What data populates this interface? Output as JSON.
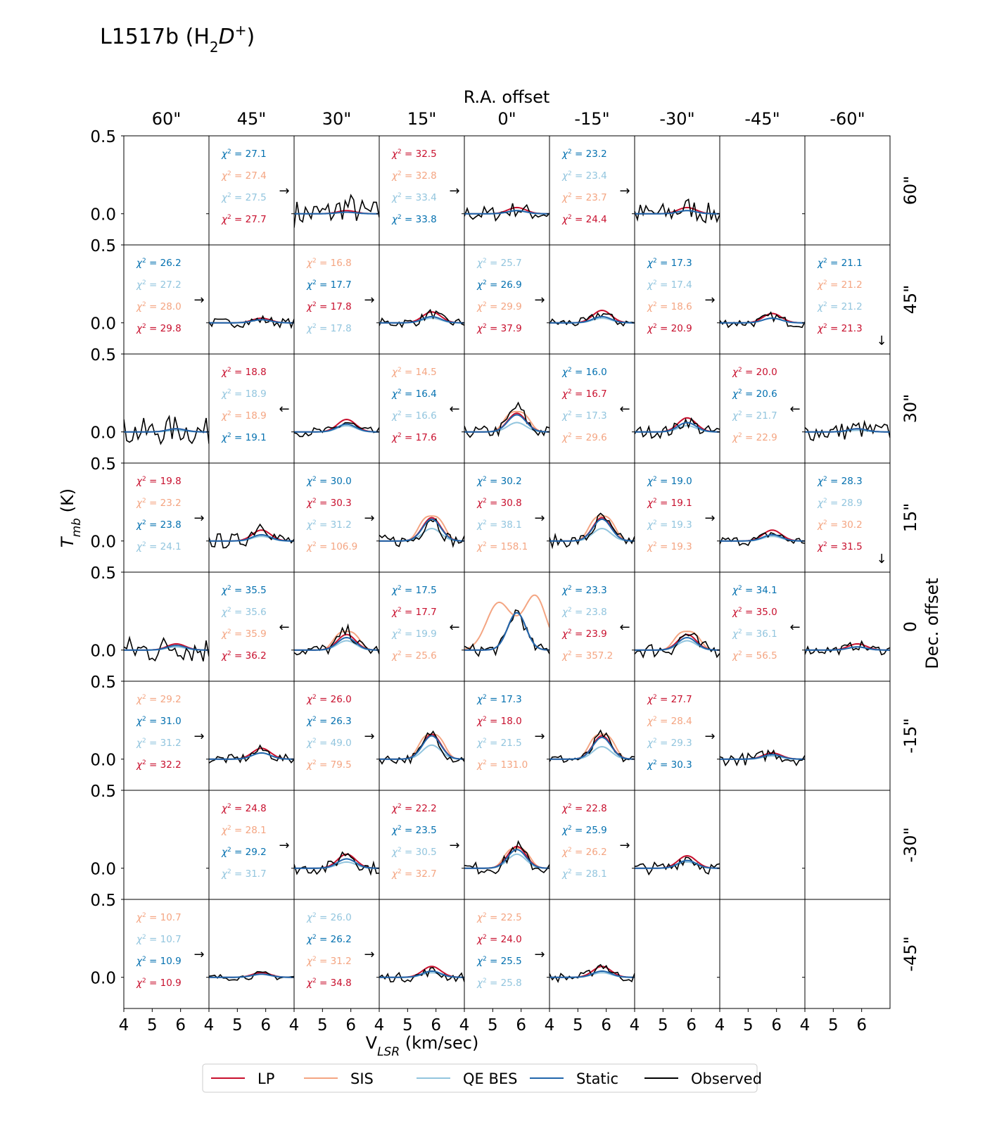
{
  "chart_data": {
    "type": "line",
    "title": "L1517b (H₂D⁺)",
    "xlabel": "V_LSR (km/sec)",
    "ylabel": "T_mb (K)",
    "top_label": "R.A. offset",
    "right_label": "Dec. offset",
    "ra_offsets": [
      "60\"",
      "45\"",
      "30\"",
      "15\"",
      "0\"",
      "-15\"",
      "-30\"",
      "-45\"",
      "-60\""
    ],
    "dec_offsets": [
      "60\"",
      "45\"",
      "30\"",
      "15\"",
      "0",
      "-15\"",
      "-30\"",
      "-45\""
    ],
    "xlim": [
      4,
      7
    ],
    "ylim": [
      -0.2,
      0.5
    ],
    "x_ticks": [
      4,
      5,
      6
    ],
    "y_ticks": [
      "0.0",
      "0.5"
    ],
    "grid": false,
    "legend_position": "bottom",
    "series": [
      {
        "key": "LP",
        "name": "LP",
        "color": "#c8102e"
      },
      {
        "key": "SIS",
        "name": "SIS",
        "color": "#f4a582"
      },
      {
        "key": "QE",
        "name": "QE BES",
        "color": "#92c5de"
      },
      {
        "key": "ST",
        "name": "Static",
        "color": "#2166ac"
      },
      {
        "key": "OB",
        "name": "Observed",
        "color": "#000000"
      }
    ],
    "chi_color_map": {
      "LP": "#c8102e",
      "SIS": "#f4a582",
      "QE": "#92c5de",
      "ST": "#0571b0"
    },
    "panels": [
      {
        "row": 0,
        "col": 0,
        "empty": true
      },
      {
        "row": 0,
        "col": 1,
        "chi": [
          [
            "ST",
            "27.1"
          ],
          [
            "SIS",
            "27.4"
          ],
          [
            "QE",
            "27.5"
          ],
          [
            "LP",
            "27.7"
          ]
        ],
        "arrow": "→"
      },
      {
        "row": 0,
        "col": 2,
        "obs_amp": 0.05,
        "lp": 0.02,
        "sis": 0.0,
        "qe": 0.01,
        "st": 0.01,
        "sis_wide": false,
        "noise": 0.09
      },
      {
        "row": 0,
        "col": 3,
        "chi": [
          [
            "LP",
            "32.5"
          ],
          [
            "SIS",
            "32.8"
          ],
          [
            "QE",
            "33.4"
          ],
          [
            "ST",
            "33.8"
          ]
        ],
        "arrow": "→"
      },
      {
        "row": 0,
        "col": 4,
        "obs_amp": 0.03,
        "lp": 0.04,
        "sis": 0.0,
        "qe": 0.02,
        "st": 0.02,
        "sis_wide": false,
        "noise": 0.05
      },
      {
        "row": 0,
        "col": 5,
        "chi": [
          [
            "ST",
            "23.2"
          ],
          [
            "QE",
            "23.4"
          ],
          [
            "SIS",
            "23.7"
          ],
          [
            "LP",
            "24.4"
          ]
        ],
        "arrow": "→"
      },
      {
        "row": 0,
        "col": 6,
        "obs_amp": 0.04,
        "lp": 0.04,
        "sis": 0.0,
        "qe": 0.02,
        "st": 0.02,
        "sis_wide": false,
        "noise": 0.07
      },
      {
        "row": 0,
        "col": 7,
        "empty": true
      },
      {
        "row": 0,
        "col": 8,
        "empty": true
      },
      {
        "row": 1,
        "col": 0,
        "chi": [
          [
            "ST",
            "26.2"
          ],
          [
            "QE",
            "27.2"
          ],
          [
            "SIS",
            "28.0"
          ],
          [
            "LP",
            "29.8"
          ]
        ],
        "arrow": "→"
      },
      {
        "row": 1,
        "col": 1,
        "obs_amp": 0.02,
        "lp": 0.03,
        "sis": 0.0,
        "qe": 0.02,
        "st": 0.02,
        "sis_wide": false,
        "noise": 0.03
      },
      {
        "row": 1,
        "col": 2,
        "chi": [
          [
            "SIS",
            "16.8"
          ],
          [
            "ST",
            "17.7"
          ],
          [
            "LP",
            "17.8"
          ],
          [
            "QE",
            "17.8"
          ]
        ],
        "arrow": "→"
      },
      {
        "row": 1,
        "col": 3,
        "obs_amp": 0.06,
        "lp": 0.07,
        "sis": 0.0,
        "qe": 0.03,
        "st": 0.04,
        "sis_wide": false,
        "noise": 0.03
      },
      {
        "row": 1,
        "col": 4,
        "chi": [
          [
            "QE",
            "25.7"
          ],
          [
            "ST",
            "26.9"
          ],
          [
            "SIS",
            "29.9"
          ],
          [
            "LP",
            "37.9"
          ]
        ],
        "arrow": "→"
      },
      {
        "row": 1,
        "col": 5,
        "obs_amp": 0.06,
        "lp": 0.08,
        "sis": 0.0,
        "qe": 0.03,
        "st": 0.04,
        "sis_wide": false,
        "noise": 0.03
      },
      {
        "row": 1,
        "col": 6,
        "chi": [
          [
            "ST",
            "17.3"
          ],
          [
            "QE",
            "17.4"
          ],
          [
            "SIS",
            "18.6"
          ],
          [
            "LP",
            "20.9"
          ]
        ],
        "arrow": "→"
      },
      {
        "row": 1,
        "col": 7,
        "obs_amp": 0.04,
        "lp": 0.06,
        "sis": 0.0,
        "qe": 0.03,
        "st": 0.03,
        "sis_wide": false,
        "noise": 0.03
      },
      {
        "row": 1,
        "col": 8,
        "chi": [
          [
            "ST",
            "21.1"
          ],
          [
            "SIS",
            "21.2"
          ],
          [
            "QE",
            "21.2"
          ],
          [
            "LP",
            "21.3"
          ]
        ],
        "arrow": "↓"
      },
      {
        "row": 2,
        "col": 0,
        "obs_amp": 0.02,
        "lp": 0.02,
        "sis": 0.0,
        "qe": 0.01,
        "st": 0.02,
        "sis_wide": false,
        "noise": 0.09
      },
      {
        "row": 2,
        "col": 1,
        "chi": [
          [
            "LP",
            "18.8"
          ],
          [
            "QE",
            "18.9"
          ],
          [
            "SIS",
            "18.9"
          ],
          [
            "ST",
            "19.1"
          ]
        ],
        "arrow": "←"
      },
      {
        "row": 2,
        "col": 2,
        "obs_amp": 0.06,
        "lp": 0.08,
        "sis": 0.0,
        "qe": 0.04,
        "st": 0.05,
        "sis_wide": false,
        "noise": 0.03
      },
      {
        "row": 2,
        "col": 3,
        "chi": [
          [
            "SIS",
            "14.5"
          ],
          [
            "ST",
            "16.4"
          ],
          [
            "QE",
            "16.6"
          ],
          [
            "LP",
            "17.6"
          ]
        ],
        "arrow": "←"
      },
      {
        "row": 2,
        "col": 4,
        "obs_amp": 0.16,
        "lp": 0.12,
        "sis": 0.13,
        "qe": 0.06,
        "st": 0.11,
        "sis_wide": true,
        "noise": 0.04
      },
      {
        "row": 2,
        "col": 5,
        "chi": [
          [
            "ST",
            "16.0"
          ],
          [
            "LP",
            "16.7"
          ],
          [
            "QE",
            "17.3"
          ],
          [
            "SIS",
            "29.6"
          ]
        ],
        "arrow": "←"
      },
      {
        "row": 2,
        "col": 6,
        "obs_amp": 0.07,
        "lp": 0.09,
        "sis": 0.0,
        "qe": 0.04,
        "st": 0.06,
        "sis_wide": false,
        "noise": 0.04
      },
      {
        "row": 2,
        "col": 7,
        "chi": [
          [
            "LP",
            "20.0"
          ],
          [
            "ST",
            "20.6"
          ],
          [
            "QE",
            "21.7"
          ],
          [
            "SIS",
            "22.9"
          ]
        ],
        "arrow": "←"
      },
      {
        "row": 2,
        "col": 8,
        "obs_amp": 0.02,
        "lp": 0.02,
        "sis": 0.0,
        "qe": 0.01,
        "st": 0.02,
        "sis_wide": false,
        "noise": 0.06
      },
      {
        "row": 3,
        "col": 0,
        "chi": [
          [
            "LP",
            "19.8"
          ],
          [
            "SIS",
            "23.2"
          ],
          [
            "ST",
            "23.8"
          ],
          [
            "QE",
            "24.1"
          ]
        ],
        "arrow": "→"
      },
      {
        "row": 3,
        "col": 1,
        "obs_amp": 0.11,
        "lp": 0.07,
        "sis": 0.0,
        "qe": 0.03,
        "st": 0.04,
        "sis_wide": false,
        "noise": 0.05
      },
      {
        "row": 3,
        "col": 2,
        "chi": [
          [
            "ST",
            "30.0"
          ],
          [
            "LP",
            "30.3"
          ],
          [
            "QE",
            "31.2"
          ],
          [
            "SIS",
            "106.9"
          ]
        ],
        "arrow": "→"
      },
      {
        "row": 3,
        "col": 3,
        "obs_amp": 0.15,
        "lp": 0.15,
        "sis": 0.16,
        "qe": 0.08,
        "st": 0.14,
        "sis_wide": true,
        "noise": 0.04
      },
      {
        "row": 3,
        "col": 4,
        "chi": [
          [
            "ST",
            "30.2"
          ],
          [
            "LP",
            "30.8"
          ],
          [
            "QE",
            "38.1"
          ],
          [
            "SIS",
            "158.1"
          ]
        ],
        "arrow": "→"
      },
      {
        "row": 3,
        "col": 5,
        "obs_amp": 0.15,
        "lp": 0.15,
        "sis": 0.16,
        "qe": 0.08,
        "st": 0.14,
        "sis_wide": true,
        "noise": 0.04
      },
      {
        "row": 3,
        "col": 6,
        "chi": [
          [
            "ST",
            "19.0"
          ],
          [
            "LP",
            "19.1"
          ],
          [
            "QE",
            "19.3"
          ],
          [
            "SIS",
            "19.3"
          ]
        ],
        "arrow": "→"
      },
      {
        "row": 3,
        "col": 7,
        "obs_amp": 0.05,
        "lp": 0.07,
        "sis": 0.0,
        "qe": 0.03,
        "st": 0.04,
        "sis_wide": false,
        "noise": 0.03
      },
      {
        "row": 3,
        "col": 8,
        "chi": [
          [
            "ST",
            "28.3"
          ],
          [
            "QE",
            "28.9"
          ],
          [
            "SIS",
            "30.2"
          ],
          [
            "LP",
            "31.5"
          ]
        ],
        "arrow": "↓"
      },
      {
        "row": 4,
        "col": 0,
        "obs_amp": 0.03,
        "lp": 0.04,
        "sis": 0.0,
        "qe": 0.02,
        "st": 0.03,
        "sis_wide": false,
        "noise": 0.09
      },
      {
        "row": 4,
        "col": 1,
        "chi": [
          [
            "ST",
            "35.5"
          ],
          [
            "QE",
            "35.6"
          ],
          [
            "SIS",
            "35.9"
          ],
          [
            "LP",
            "36.2"
          ]
        ],
        "arrow": "←"
      },
      {
        "row": 4,
        "col": 2,
        "obs_amp": 0.12,
        "lp": 0.1,
        "sis": 0.12,
        "qe": 0.06,
        "st": 0.08,
        "sis_wide": true,
        "noise": 0.04
      },
      {
        "row": 4,
        "col": 3,
        "chi": [
          [
            "ST",
            "17.5"
          ],
          [
            "LP",
            "17.7"
          ],
          [
            "QE",
            "19.9"
          ],
          [
            "SIS",
            "25.6"
          ]
        ],
        "arrow": "←"
      },
      {
        "row": 4,
        "col": 4,
        "obs_amp": 0.25,
        "lp": 0.24,
        "sis": 0.3,
        "qe": 0.24,
        "st": 0.24,
        "sis_wide": true,
        "sis_double": true,
        "noise": 0.04
      },
      {
        "row": 4,
        "col": 5,
        "chi": [
          [
            "ST",
            "23.3"
          ],
          [
            "QE",
            "23.8"
          ],
          [
            "LP",
            "23.9"
          ],
          [
            "SIS",
            "357.2"
          ]
        ],
        "arrow": "←"
      },
      {
        "row": 4,
        "col": 6,
        "obs_amp": 0.1,
        "lp": 0.1,
        "sis": 0.12,
        "qe": 0.06,
        "st": 0.08,
        "sis_wide": true,
        "noise": 0.05
      },
      {
        "row": 4,
        "col": 7,
        "chi": [
          [
            "ST",
            "34.1"
          ],
          [
            "LP",
            "35.0"
          ],
          [
            "QE",
            "36.1"
          ],
          [
            "SIS",
            "56.5"
          ]
        ],
        "arrow": "←"
      },
      {
        "row": 4,
        "col": 8,
        "obs_amp": 0.03,
        "lp": 0.04,
        "sis": 0.0,
        "qe": 0.02,
        "st": 0.02,
        "sis_wide": false,
        "noise": 0.03
      },
      {
        "row": 5,
        "col": 0,
        "chi": [
          [
            "SIS",
            "29.2"
          ],
          [
            "ST",
            "31.0"
          ],
          [
            "QE",
            "31.2"
          ],
          [
            "LP",
            "32.2"
          ]
        ],
        "arrow": "→"
      },
      {
        "row": 5,
        "col": 1,
        "obs_amp": 0.06,
        "lp": 0.07,
        "sis": 0.0,
        "qe": 0.04,
        "st": 0.04,
        "sis_wide": false,
        "noise": 0.03
      },
      {
        "row": 5,
        "col": 2,
        "chi": [
          [
            "LP",
            "26.0"
          ],
          [
            "ST",
            "26.3"
          ],
          [
            "QE",
            "49.0"
          ],
          [
            "SIS",
            "79.5"
          ]
        ],
        "arrow": "→"
      },
      {
        "row": 5,
        "col": 3,
        "obs_amp": 0.17,
        "lp": 0.16,
        "sis": 0.16,
        "qe": 0.09,
        "st": 0.15,
        "sis_wide": true,
        "noise": 0.03
      },
      {
        "row": 5,
        "col": 4,
        "chi": [
          [
            "ST",
            "17.3"
          ],
          [
            "LP",
            "18.0"
          ],
          [
            "QE",
            "21.5"
          ],
          [
            "SIS",
            "131.0"
          ]
        ],
        "arrow": "→"
      },
      {
        "row": 5,
        "col": 5,
        "obs_amp": 0.16,
        "lp": 0.15,
        "sis": 0.16,
        "qe": 0.08,
        "st": 0.14,
        "sis_wide": true,
        "noise": 0.03
      },
      {
        "row": 5,
        "col": 6,
        "chi": [
          [
            "LP",
            "27.7"
          ],
          [
            "SIS",
            "28.4"
          ],
          [
            "QE",
            "29.3"
          ],
          [
            "ST",
            "30.3"
          ]
        ],
        "arrow": "→"
      },
      {
        "row": 5,
        "col": 7,
        "obs_amp": 0.04,
        "lp": 0.04,
        "sis": 0.0,
        "qe": 0.02,
        "st": 0.03,
        "sis_wide": false,
        "noise": 0.04
      },
      {
        "row": 5,
        "col": 8,
        "empty": true
      },
      {
        "row": 6,
        "col": 0,
        "empty": true
      },
      {
        "row": 6,
        "col": 1,
        "chi": [
          [
            "LP",
            "24.8"
          ],
          [
            "SIS",
            "28.1"
          ],
          [
            "ST",
            "29.2"
          ],
          [
            "QE",
            "31.7"
          ]
        ],
        "arrow": "→"
      },
      {
        "row": 6,
        "col": 2,
        "obs_amp": 0.1,
        "lp": 0.09,
        "sis": 0.0,
        "qe": 0.04,
        "st": 0.06,
        "sis_wide": false,
        "noise": 0.04
      },
      {
        "row": 6,
        "col": 3,
        "chi": [
          [
            "LP",
            "22.2"
          ],
          [
            "ST",
            "23.5"
          ],
          [
            "QE",
            "30.5"
          ],
          [
            "SIS",
            "32.7"
          ]
        ],
        "arrow": "→"
      },
      {
        "row": 6,
        "col": 4,
        "obs_amp": 0.14,
        "lp": 0.14,
        "sis": 0.13,
        "qe": 0.09,
        "st": 0.12,
        "sis_wide": true,
        "noise": 0.04
      },
      {
        "row": 6,
        "col": 5,
        "chi": [
          [
            "LP",
            "22.8"
          ],
          [
            "ST",
            "25.9"
          ],
          [
            "SIS",
            "26.2"
          ],
          [
            "QE",
            "28.1"
          ]
        ],
        "arrow": "→"
      },
      {
        "row": 6,
        "col": 6,
        "obs_amp": 0.07,
        "lp": 0.08,
        "sis": 0.0,
        "qe": 0.04,
        "st": 0.05,
        "sis_wide": false,
        "noise": 0.04
      },
      {
        "row": 6,
        "col": 7,
        "empty": true
      },
      {
        "row": 6,
        "col": 8,
        "empty": true
      },
      {
        "row": 7,
        "col": 0,
        "chi": [
          [
            "SIS",
            "10.7"
          ],
          [
            "QE",
            "10.7"
          ],
          [
            "ST",
            "10.9"
          ],
          [
            "LP",
            "10.9"
          ]
        ],
        "arrow": "→"
      },
      {
        "row": 7,
        "col": 1,
        "obs_amp": 0.02,
        "lp": 0.03,
        "sis": 0.0,
        "qe": 0.02,
        "st": 0.02,
        "sis_wide": false,
        "noise": 0.02
      },
      {
        "row": 7,
        "col": 2,
        "chi": [
          [
            "QE",
            "26.0"
          ],
          [
            "ST",
            "26.2"
          ],
          [
            "SIS",
            "31.2"
          ],
          [
            "LP",
            "34.8"
          ]
        ],
        "arrow": "→"
      },
      {
        "row": 7,
        "col": 3,
        "obs_amp": 0.04,
        "lp": 0.07,
        "sis": 0.0,
        "qe": 0.03,
        "st": 0.04,
        "sis_wide": false,
        "noise": 0.03
      },
      {
        "row": 7,
        "col": 4,
        "chi": [
          [
            "SIS",
            "22.5"
          ],
          [
            "LP",
            "24.0"
          ],
          [
            "ST",
            "25.5"
          ],
          [
            "QE",
            "25.8"
          ]
        ],
        "arrow": "→"
      },
      {
        "row": 7,
        "col": 5,
        "obs_amp": 0.08,
        "lp": 0.07,
        "sis": 0.0,
        "qe": 0.03,
        "st": 0.04,
        "sis_wide": false,
        "noise": 0.03
      },
      {
        "row": 7,
        "col": 6,
        "empty": true
      },
      {
        "row": 7,
        "col": 7,
        "empty": true
      },
      {
        "row": 7,
        "col": 8,
        "empty": true
      }
    ]
  }
}
